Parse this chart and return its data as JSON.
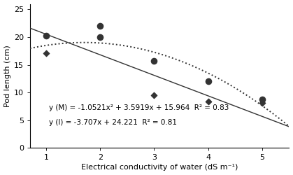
{
  "title": "",
  "xlabel": "Electrical conductivity of water (dS m⁻¹)",
  "ylabel": "Pod length (cm)",
  "xlim": [
    0.7,
    5.5
  ],
  "ylim": [
    0,
    26
  ],
  "yticks": [
    0,
    5,
    10,
    15,
    20,
    25
  ],
  "xticks": [
    1,
    2,
    3,
    4,
    5
  ],
  "M_scatter_x": [
    1,
    2,
    2,
    3,
    4,
    5
  ],
  "M_scatter_y": [
    20.3,
    22.0,
    20.0,
    15.7,
    12.1,
    8.7
  ],
  "I_scatter_x": [
    1,
    3,
    4,
    5
  ],
  "I_scatter_y": [
    17.1,
    9.5,
    8.4,
    8.1
  ],
  "M_coef": [
    -1.0521,
    3.5919,
    15.964
  ],
  "I_coef": [
    -3.707,
    24.221
  ],
  "eq_M": "y (M) = -1.0521x² + 3.5919x + 15.964  R² = 0.83",
  "eq_I": "y (I) = -3.707x + 24.221  R² = 0.81",
  "color": "#333333",
  "bg_color": "#ffffff",
  "fontsize_label": 8,
  "fontsize_tick": 8,
  "fontsize_eq": 7.5
}
